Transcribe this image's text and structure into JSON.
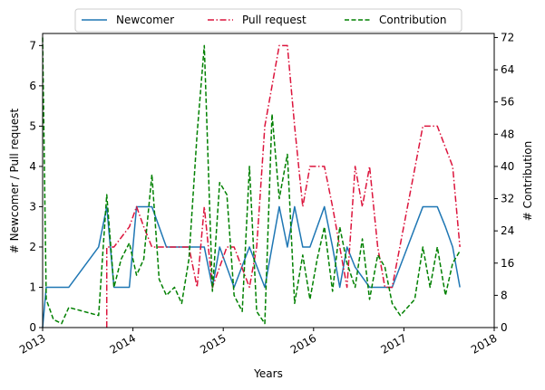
{
  "chart_data": {
    "type": "line",
    "xlabel": "Years",
    "ylabel_left": "# Newcomer / Pull request",
    "ylabel_right": "# Contribution",
    "xlim": [
      2013.0,
      2018.0
    ],
    "ylim_left": [
      0,
      7.3
    ],
    "ylim_right": [
      0,
      73
    ],
    "x_ticks": [
      2013,
      2014,
      2015,
      2016,
      2017,
      2018
    ],
    "x_tick_labels": [
      "2013",
      "2014",
      "2015",
      "2016",
      "2017",
      "2018"
    ],
    "y_ticks_left": [
      0,
      1,
      2,
      3,
      4,
      5,
      6,
      7
    ],
    "y_tick_labels_left": [
      "0",
      "1",
      "2",
      "3",
      "4",
      "5",
      "6",
      "7"
    ],
    "y_ticks_right": [
      0,
      8,
      16,
      24,
      32,
      40,
      48,
      56,
      64,
      72
    ],
    "y_tick_labels_right": [
      "0",
      "8",
      "16",
      "24",
      "32",
      "40",
      "48",
      "56",
      "64",
      "72"
    ],
    "legend_position": "top-center",
    "series": [
      {
        "name": "Newcomer",
        "axis": "left",
        "color": "#1f77b4",
        "dash": "solid",
        "x": [
          2013.0,
          2013.04,
          2013.29,
          2013.62,
          2013.71,
          2013.79,
          2013.96,
          2014.04,
          2014.21,
          2014.37,
          2014.62,
          2014.79,
          2014.88,
          2014.96,
          2015.04,
          2015.12,
          2015.29,
          2015.46,
          2015.62,
          2015.71,
          2015.79,
          2015.88,
          2015.96,
          2016.12,
          2016.21,
          2016.29,
          2016.37,
          2016.46,
          2016.62,
          2016.79,
          2016.87,
          2017.04,
          2017.21,
          2017.37,
          2017.46,
          2017.54,
          2017.62
        ],
        "y": [
          0.0,
          1.0,
          1.0,
          2.0,
          3.0,
          1.0,
          1.0,
          3.0,
          3.0,
          2.0,
          2.0,
          2.0,
          1.0,
          2.0,
          1.5,
          1.0,
          2.0,
          1.0,
          3.0,
          2.0,
          3.0,
          2.0,
          2.0,
          3.0,
          2.0,
          1.0,
          2.0,
          1.5,
          1.0,
          1.0,
          1.0,
          2.0,
          3.0,
          3.0,
          2.5,
          2.0,
          1.0
        ]
      },
      {
        "name": "Pull request",
        "axis": "left",
        "color": "#dc143c",
        "dash": "dashdot",
        "x": [
          2013.71,
          2013.71,
          2013.79,
          2013.96,
          2014.04,
          2014.12,
          2014.21,
          2014.37,
          2014.62,
          2014.71,
          2014.79,
          2014.88,
          2015.04,
          2015.12,
          2015.29,
          2015.37,
          2015.46,
          2015.62,
          2015.71,
          2015.79,
          2015.88,
          2015.96,
          2016.12,
          2016.21,
          2016.29,
          2016.37,
          2016.46,
          2016.54,
          2016.62,
          2016.71,
          2016.79,
          2016.87,
          2017.04,
          2017.21,
          2017.37,
          2017.54,
          2017.62
        ],
        "y": [
          0.0,
          2.0,
          2.0,
          2.5,
          3.0,
          2.5,
          2.0,
          2.0,
          2.0,
          1.0,
          3.0,
          1.0,
          2.0,
          2.0,
          1.0,
          2.0,
          5.0,
          7.0,
          7.0,
          5.0,
          3.0,
          4.0,
          4.0,
          3.0,
          2.0,
          1.0,
          4.0,
          3.0,
          4.0,
          2.0,
          1.0,
          1.0,
          3.0,
          5.0,
          5.0,
          4.0,
          2.0
        ]
      },
      {
        "name": "Contribution",
        "axis": "right",
        "color": "#008000",
        "dash": "dashed",
        "x": [
          2013.0,
          2013.04,
          2013.12,
          2013.21,
          2013.29,
          2013.62,
          2013.71,
          2013.79,
          2013.87,
          2013.96,
          2014.04,
          2014.12,
          2014.21,
          2014.29,
          2014.37,
          2014.46,
          2014.54,
          2014.62,
          2014.71,
          2014.79,
          2014.88,
          2014.96,
          2015.04,
          2015.12,
          2015.21,
          2015.29,
          2015.37,
          2015.46,
          2015.54,
          2015.62,
          2015.71,
          2015.79,
          2015.88,
          2015.96,
          2016.04,
          2016.12,
          2016.21,
          2016.29,
          2016.37,
          2016.46,
          2016.54,
          2016.62,
          2016.71,
          2016.79,
          2016.87,
          2016.96,
          2017.04,
          2017.12,
          2017.21,
          2017.29,
          2017.37,
          2017.46,
          2017.54,
          2017.62
        ],
        "y": [
          72,
          7,
          2,
          1,
          5,
          3,
          33,
          10,
          17,
          21,
          13,
          17,
          38,
          12,
          8,
          10,
          6,
          17,
          48,
          70,
          9,
          36,
          33,
          8,
          4,
          40,
          4,
          1,
          53,
          32,
          43,
          6,
          18,
          7,
          17,
          25,
          9,
          25,
          16,
          10,
          22,
          7,
          18,
          15,
          6,
          3,
          5,
          7,
          20,
          10,
          20,
          8,
          16,
          19
        ]
      }
    ]
  }
}
